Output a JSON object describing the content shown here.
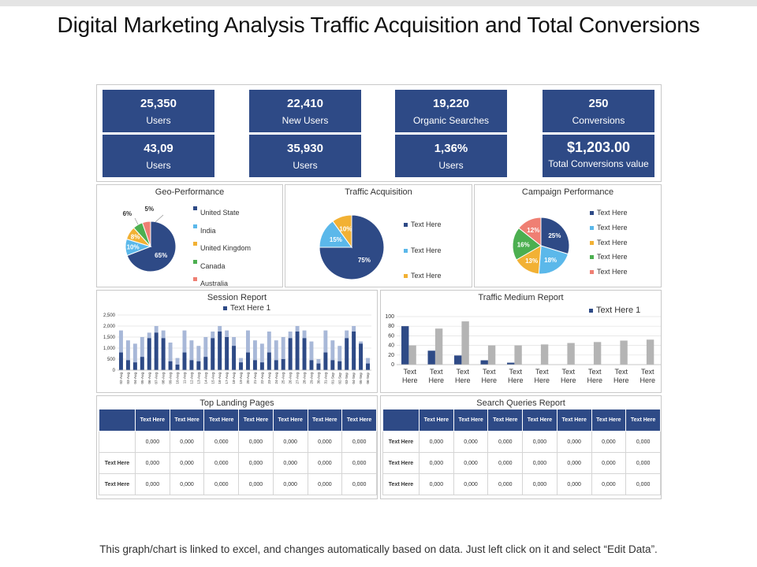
{
  "title": "Digital Marketing Analysis Traffic Acquisition and Total Conversions",
  "footer": "This graph/chart is linked to excel, and changes automatically based on data. Just left click on it and select “Edit Data”.",
  "colors": {
    "navy": "#2e4a86",
    "lightblue": "#5bb8ea",
    "orange": "#f2b134",
    "green": "#4caf50",
    "salmon": "#ef7f73",
    "gray": "#b4b4b4",
    "lightnavy": "#a8b8d8"
  },
  "kpis": [
    {
      "value": "25,350",
      "label": "Users"
    },
    {
      "value": "22,410",
      "label": "New Users"
    },
    {
      "value": "19,220",
      "label": "Organic Searches"
    },
    {
      "value": "250",
      "label": "Conversions"
    },
    {
      "value": "43,09",
      "label": "Users"
    },
    {
      "value": "35,930",
      "label": "Users"
    },
    {
      "value": "1,36%",
      "label": "Users"
    },
    {
      "value": "$1,203.00",
      "label": "Total Conversions value"
    }
  ],
  "chart_data": [
    {
      "type": "pie",
      "title": "Geo-Performance",
      "labels": [
        "United State",
        "India",
        "United Kingdom",
        "Canada",
        "Australia"
      ],
      "values": [
        65,
        10,
        8,
        6,
        5
      ],
      "value_labels": [
        "65%",
        "10%",
        "8%",
        "6%",
        "5%"
      ]
    },
    {
      "type": "pie",
      "title": "Traffic Acquisition",
      "labels": [
        "Text Here",
        "Text Here",
        "Text Here"
      ],
      "values": [
        75,
        15,
        10
      ],
      "value_labels": [
        "75%",
        "15%",
        "10%"
      ]
    },
    {
      "type": "pie",
      "title": "Campaign Performance",
      "labels": [
        "Text Here",
        "Text Here",
        "Text Here",
        "Text Here",
        "Text Here"
      ],
      "values": [
        25,
        18,
        13,
        16,
        12
      ],
      "value_labels": [
        "25%",
        "18%",
        "13%",
        "16%",
        "12%"
      ]
    },
    {
      "type": "bar",
      "title": "Session Report",
      "legend": "Text Here 1",
      "ylim": [
        0,
        2500
      ],
      "yticks": [
        "0",
        "500",
        "1,000",
        "1,500",
        "2,000",
        "2,500"
      ],
      "categories": [
        "02-Aug",
        "03-Aug",
        "04-Aug",
        "05-Aug",
        "06-Aug",
        "07-Aug",
        "08-Aug",
        "09-Aug",
        "10-Aug",
        "11-Aug",
        "12-Aug",
        "13-Aug",
        "14-Aug",
        "15-Aug",
        "16-Aug",
        "17-Aug",
        "18-Aug",
        "19-Aug",
        "20-Aug",
        "21-Aug",
        "22-Aug",
        "23-Aug",
        "24-Aug",
        "25-Aug",
        "26-Aug",
        "27-Aug",
        "28-Aug",
        "29-Aug",
        "30-Aug",
        "31-Aug",
        "01-Sep",
        "02-Sep",
        "03-Sep",
        "04-Sep",
        "05-Sep",
        "06-Sep"
      ],
      "series": [
        {
          "name": "Text Here 1",
          "values": [
            800,
            450,
            350,
            600,
            1450,
            1700,
            1450,
            400,
            250,
            800,
            450,
            400,
            600,
            1450,
            1750,
            1500,
            1100,
            350,
            800,
            450,
            350,
            800,
            450,
            500,
            1450,
            1750,
            1450,
            450,
            300,
            800,
            450,
            400,
            1450,
            1750,
            1200,
            300
          ]
        },
        {
          "values": [
            1800,
            1350,
            1200,
            1500,
            1700,
            2000,
            1800,
            1250,
            550,
            1800,
            1350,
            1100,
            1500,
            1750,
            2000,
            1800,
            1500,
            550,
            1800,
            1350,
            1200,
            1750,
            1350,
            1500,
            1750,
            2000,
            1800,
            1300,
            500,
            1800,
            1350,
            1100,
            1800,
            2000,
            1300,
            550
          ]
        }
      ]
    },
    {
      "type": "bar",
      "title": "Traffic Medium Report",
      "legend": "Text Here 1",
      "ylim": [
        0,
        100
      ],
      "yticks": [
        "0",
        "20",
        "40",
        "60",
        "80",
        "100"
      ],
      "categories": [
        "Text Here",
        "Text Here",
        "Text Here",
        "Text Here",
        "Text Here",
        "Text Here",
        "Text Here",
        "Text Here",
        "Text Here",
        "Text Here"
      ],
      "series": [
        {
          "name": "Text Here 1",
          "values": [
            80,
            29,
            19,
            9,
            4,
            0,
            0,
            0,
            0,
            0
          ]
        },
        {
          "values": [
            40,
            75,
            90,
            40,
            40,
            42,
            45,
            47,
            50,
            52
          ]
        }
      ]
    }
  ],
  "landing": {
    "title": "Top Landing Pages",
    "headers": [
      "",
      "Text Here",
      "Text Here",
      "Text Here",
      "Text Here",
      "Text Here",
      "Text Here",
      "Text Here"
    ],
    "rows": [
      [
        "",
        "0,000",
        "0,000",
        "0,000",
        "0,000",
        "0,000",
        "0,000",
        "0,000"
      ],
      [
        "Text Here",
        "0,000",
        "0,000",
        "0,000",
        "0,000",
        "0,000",
        "0,000",
        "0,000"
      ],
      [
        "Text Here",
        "0,000",
        "0,000",
        "0,000",
        "0,000",
        "0,000",
        "0,000",
        "0,000"
      ]
    ]
  },
  "search": {
    "title": "Search Queries Report",
    "headers": [
      "",
      "Text Here",
      "Text Here",
      "Text Here",
      "Text Here",
      "Text Here",
      "Text Here",
      "Text Here"
    ],
    "rows": [
      [
        "Text Here",
        "0,000",
        "0,000",
        "0,000",
        "0,000",
        "0,000",
        "0,000",
        "0,000"
      ],
      [
        "Text Here",
        "0,000",
        "0,000",
        "0,000",
        "0,000",
        "0,000",
        "0,000",
        "0,000"
      ],
      [
        "Text Here",
        "0,000",
        "0,000",
        "0,000",
        "0,000",
        "0,000",
        "0,000",
        "0,000"
      ]
    ]
  }
}
